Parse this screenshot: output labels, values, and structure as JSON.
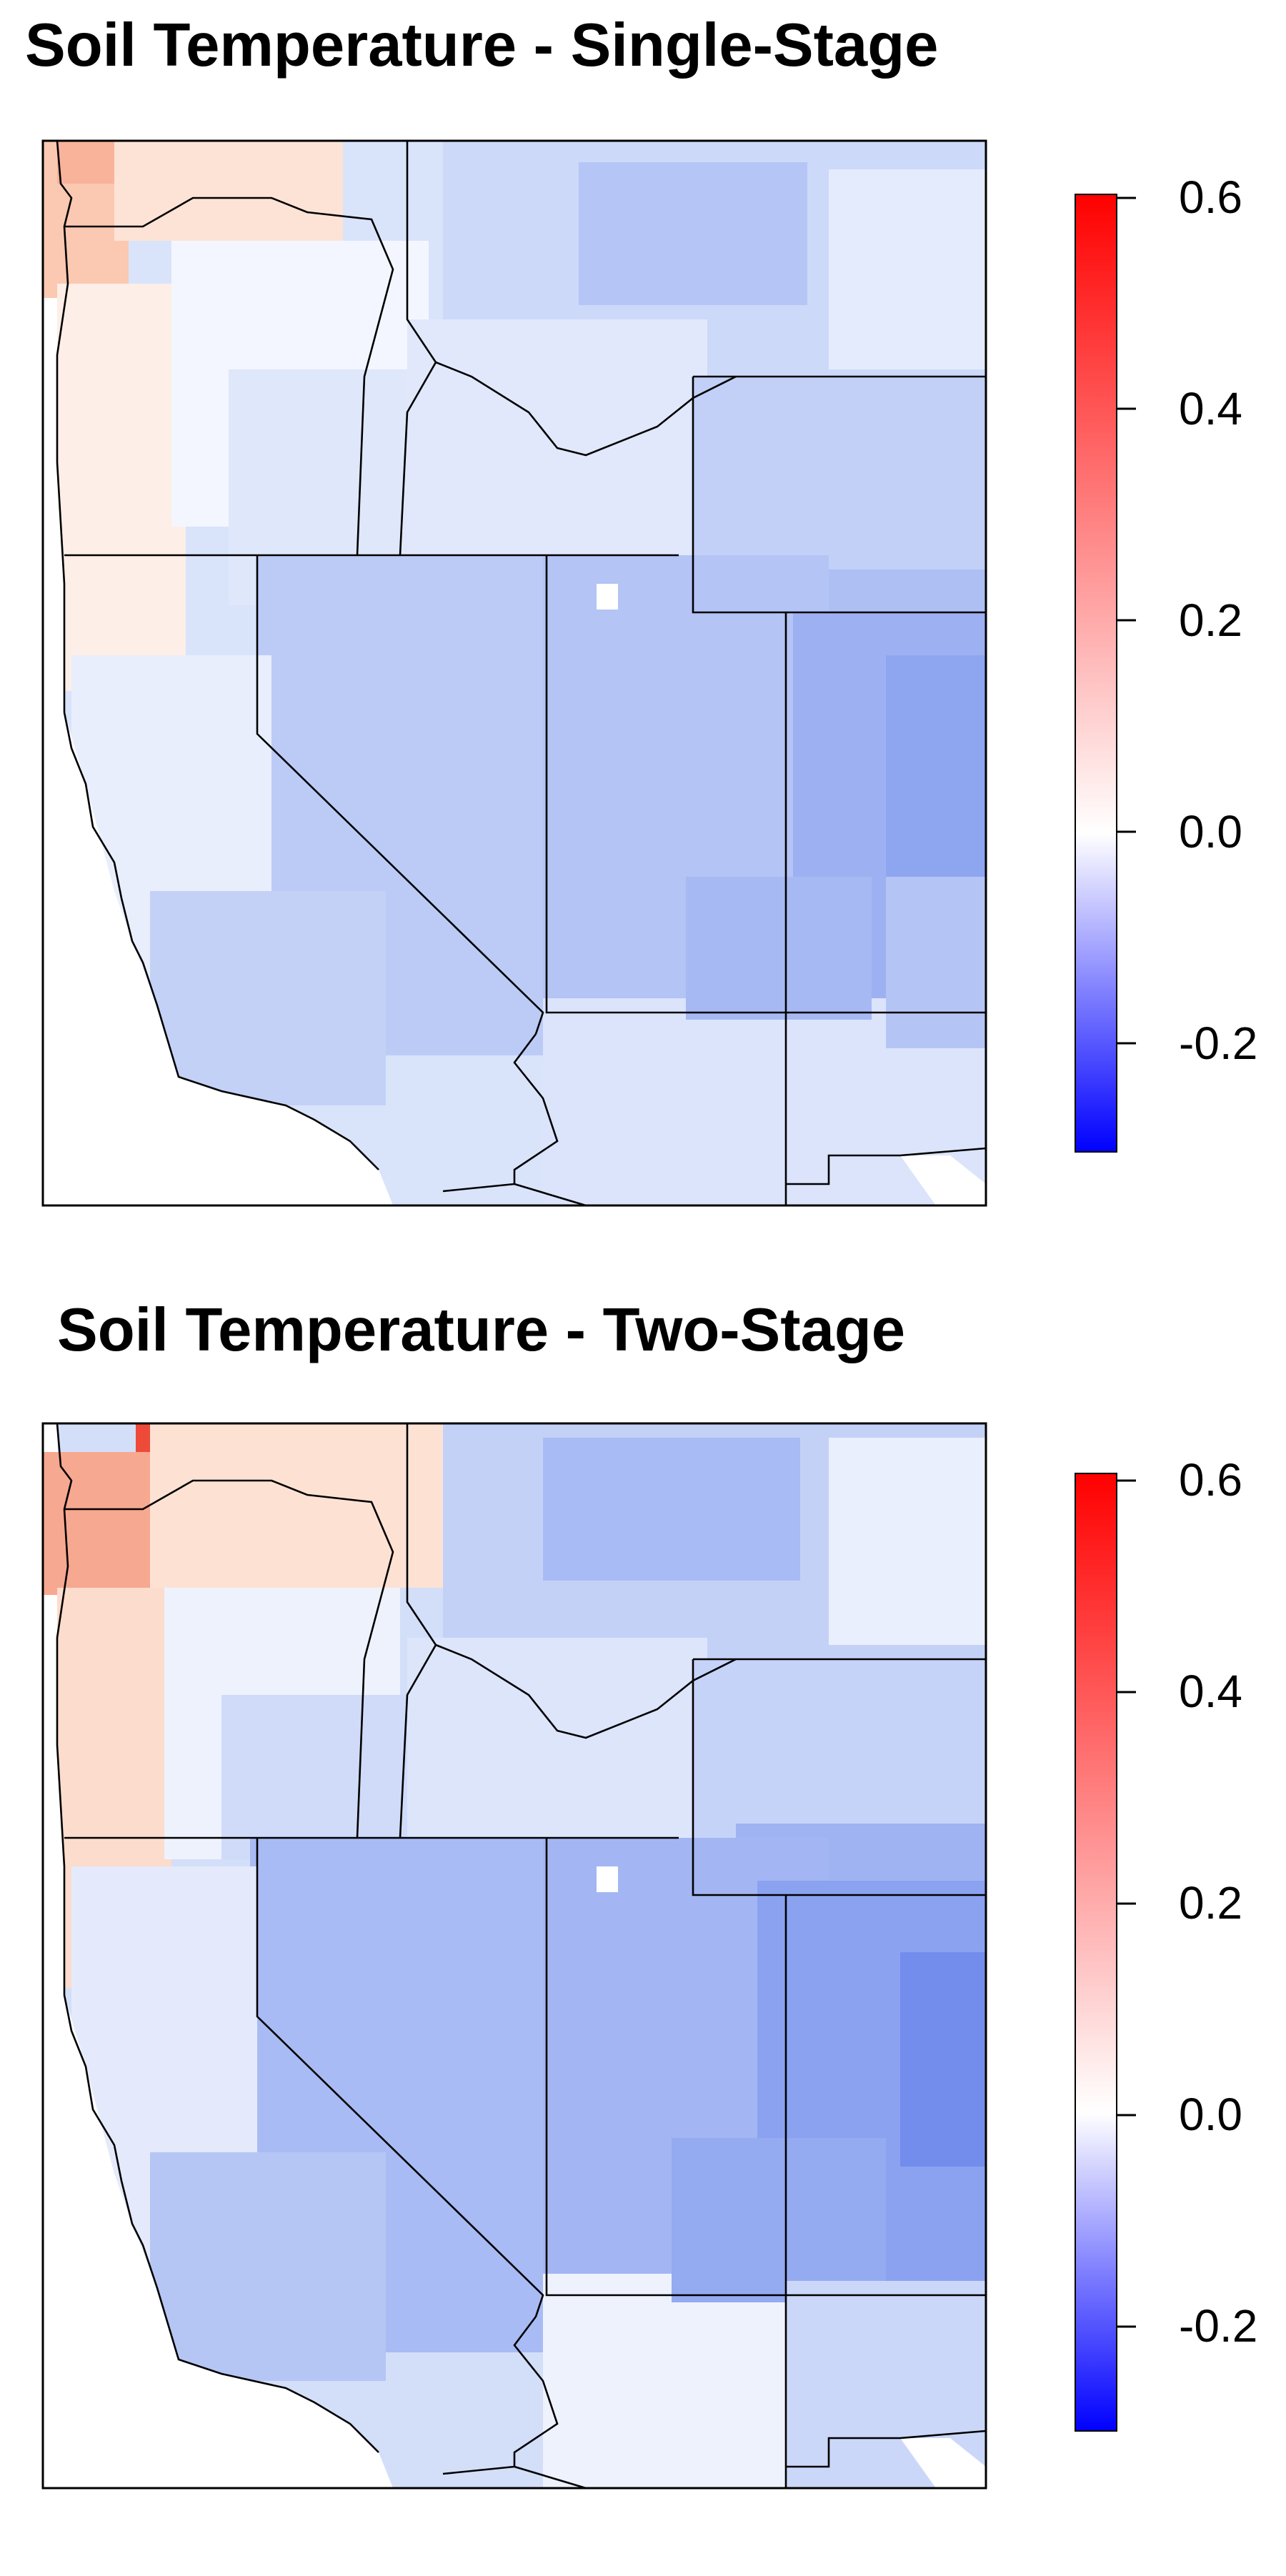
{
  "panels": [
    {
      "title": "Soil Temperature - Single-Stage",
      "colorbar": {
        "ticks": [
          "0.6",
          "0.4",
          "0.2",
          "0.0",
          "-0.2"
        ],
        "range": [
          -0.3,
          0.6
        ]
      }
    },
    {
      "title": "Soil Temperature - Two-Stage",
      "colorbar": {
        "ticks": [
          "0.6",
          "0.4",
          "0.2",
          "0.0",
          "-0.2"
        ],
        "range": [
          -0.3,
          0.6
        ]
      }
    }
  ],
  "colors": {
    "low": "#0000ff",
    "mid": "#ffffff",
    "high": "#ff0000"
  }
}
